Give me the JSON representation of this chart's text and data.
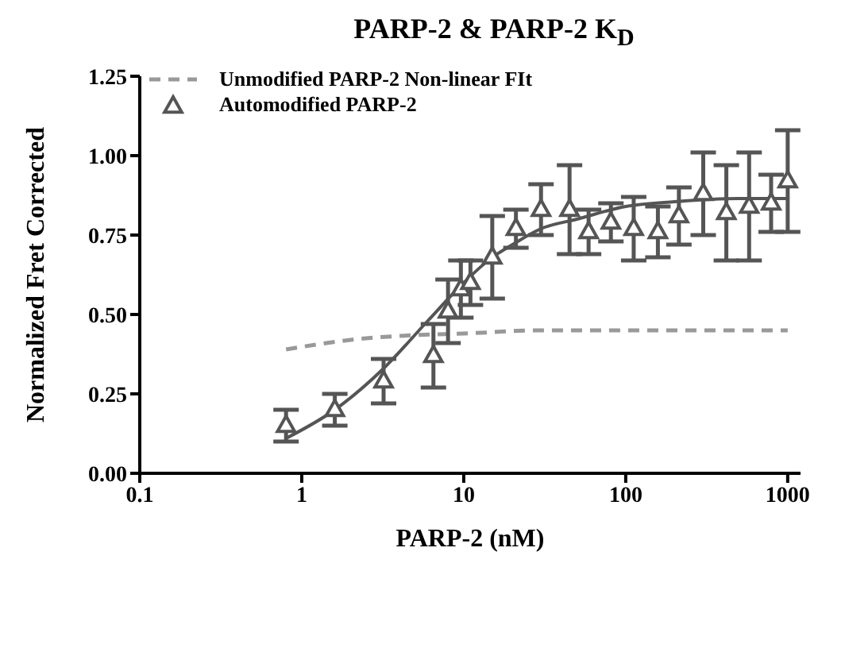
{
  "chart_data": {
    "type": "scatter",
    "title": "PARP-2 & PARP-2 K$_{D}$",
    "xlabel": "PARP-2 (nM)",
    "ylabel": "Normalized Fret Corrected",
    "log": "x",
    "xlim": [
      0.1,
      1200
    ],
    "xticks": [
      0.1,
      1,
      10,
      100,
      1000
    ],
    "ylim": [
      0,
      1.25
    ],
    "yticks": [
      {
        "value": 0,
        "label": "0.00"
      },
      {
        "value": 0.25,
        "label": "0.25"
      },
      {
        "value": 0.5,
        "label": "0.50"
      },
      {
        "value": 0.75,
        "label": "0.75"
      },
      {
        "value": 1,
        "label": "1.00"
      },
      {
        "value": 1.25,
        "label": "1.25"
      }
    ],
    "grid": false,
    "legend": "top left",
    "series": [
      {
        "name": "Unmodified PARP-2 Non-linear FIt",
        "type": "line",
        "line_style": "dashed",
        "marker": "none",
        "color": "#999999",
        "x": [
          0.8,
          2,
          5,
          10,
          30,
          100,
          1000
        ],
        "values": [
          0.39,
          0.42,
          0.435,
          0.44,
          0.45,
          0.45,
          0.45
        ]
      },
      {
        "name": "Automodified PARP-2",
        "marker": "triangle",
        "color": "#555555",
        "x": [
          0.8,
          1.6,
          3.2,
          6.5,
          8,
          9.6,
          11,
          15,
          21,
          30,
          45,
          59,
          81,
          112,
          158,
          213,
          301,
          418,
          578,
          790,
          1000
        ],
        "values": [
          0.15,
          0.2,
          0.29,
          0.37,
          0.51,
          0.58,
          0.6,
          0.68,
          0.77,
          0.83,
          0.83,
          0.76,
          0.79,
          0.77,
          0.76,
          0.81,
          0.88,
          0.82,
          0.84,
          0.85,
          0.92
        ],
        "errors": [
          0.05,
          0.05,
          0.07,
          0.1,
          0.1,
          0.09,
          0.07,
          0.13,
          0.06,
          0.08,
          0.14,
          0.07,
          0.06,
          0.1,
          0.08,
          0.09,
          0.13,
          0.15,
          0.17,
          0.09,
          0.16
        ]
      },
      {
        "type": "line",
        "line_style": "solid",
        "marker": "none",
        "color": "#555555",
        "x": [
          0.8,
          1.6,
          3.2,
          6,
          10,
          15,
          20,
          30,
          50,
          100,
          200,
          500,
          1000
        ],
        "values": [
          0.11,
          0.2,
          0.33,
          0.48,
          0.6,
          0.68,
          0.72,
          0.77,
          0.8,
          0.84,
          0.855,
          0.865,
          0.865
        ]
      }
    ]
  }
}
